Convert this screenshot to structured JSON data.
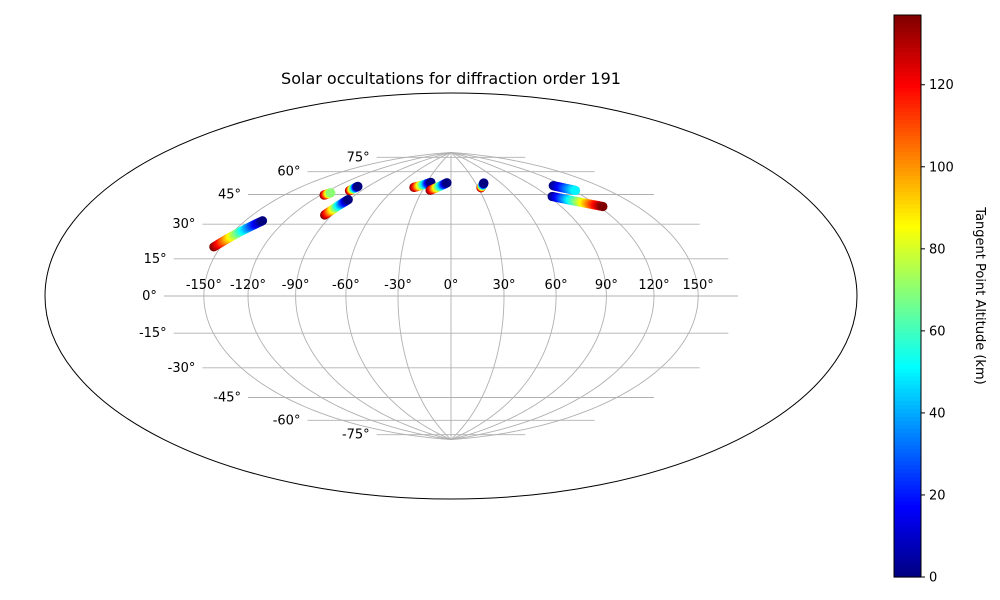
{
  "chart_data": {
    "type": "scatter",
    "projection": "hammer",
    "title": "Solar occultations for diffraction order 191",
    "longitude_ticks": [
      -150,
      -120,
      -90,
      -60,
      -30,
      0,
      30,
      60,
      90,
      120,
      150
    ],
    "latitude_ticks": [
      -75,
      -60,
      -45,
      -30,
      -15,
      0,
      15,
      30,
      45,
      60,
      75
    ],
    "longitude_tick_labels": [
      "-150°",
      "-120°",
      "-90°",
      "-60°",
      "-30°",
      "0°",
      "30°",
      "60°",
      "90°",
      "120°",
      "150°"
    ],
    "latitude_tick_labels": [
      "-75°",
      "-60°",
      "-45°",
      "-30°",
      "-15°",
      "0°",
      "15°",
      "30°",
      "45°",
      "60°",
      "75°"
    ],
    "grid": true,
    "colormap": "jet",
    "colorbar": {
      "label": "Tangent Point Altitude (km)",
      "range": [
        0,
        137
      ],
      "ticks": [
        0,
        20,
        40,
        60,
        80,
        100,
        120
      ],
      "tick_labels": [
        "0",
        "20",
        "40",
        "60",
        "80",
        "100",
        "120"
      ],
      "position": "right"
    },
    "tracks": [
      {
        "lon_start": -155.0,
        "lat_start": 22.0,
        "lon_end": -137.0,
        "lat_end": 36.6,
        "alt_start": 137,
        "alt_end": 0
      },
      {
        "lon_start": -117.0,
        "lat_start": 53.6,
        "lon_end": -114.6,
        "lat_end": 55.3,
        "alt_start": 137,
        "alt_end": 70
      },
      {
        "lon_start": -101.0,
        "lat_start": 58.0,
        "lon_end": -100.0,
        "lat_end": 61.0,
        "alt_start": 137,
        "alt_end": 0
      },
      {
        "lon_start": -95.5,
        "lat_start": 43.5,
        "lon_end": -90.8,
        "lat_end": 53.2,
        "alt_start": 137,
        "alt_end": 0
      },
      {
        "lon_start": -41.0,
        "lat_start": 64.0,
        "lon_end": -25.0,
        "lat_end": 67.8,
        "alt_start": 137,
        "alt_end": 0
      },
      {
        "lon_start": -22.0,
        "lat_start": 62.6,
        "lon_end": -5.0,
        "lat_end": 67.8,
        "alt_start": 137,
        "alt_end": 0
      },
      {
        "lon_start": 33.0,
        "lat_start": 64.0,
        "lon_end": 40.0,
        "lat_end": 67.0,
        "alt_start": 137,
        "alt_end": 0
      },
      {
        "lon_start": 93.0,
        "lat_start": 55.0,
        "lon_end": 123.0,
        "lat_end": 46.0,
        "alt_start": 0,
        "alt_end": 137
      },
      {
        "lon_start": 110.0,
        "lat_start": 60.5,
        "lon_end": 122.0,
        "lat_end": 56.0,
        "alt_start": 0,
        "alt_end": 50
      }
    ]
  }
}
